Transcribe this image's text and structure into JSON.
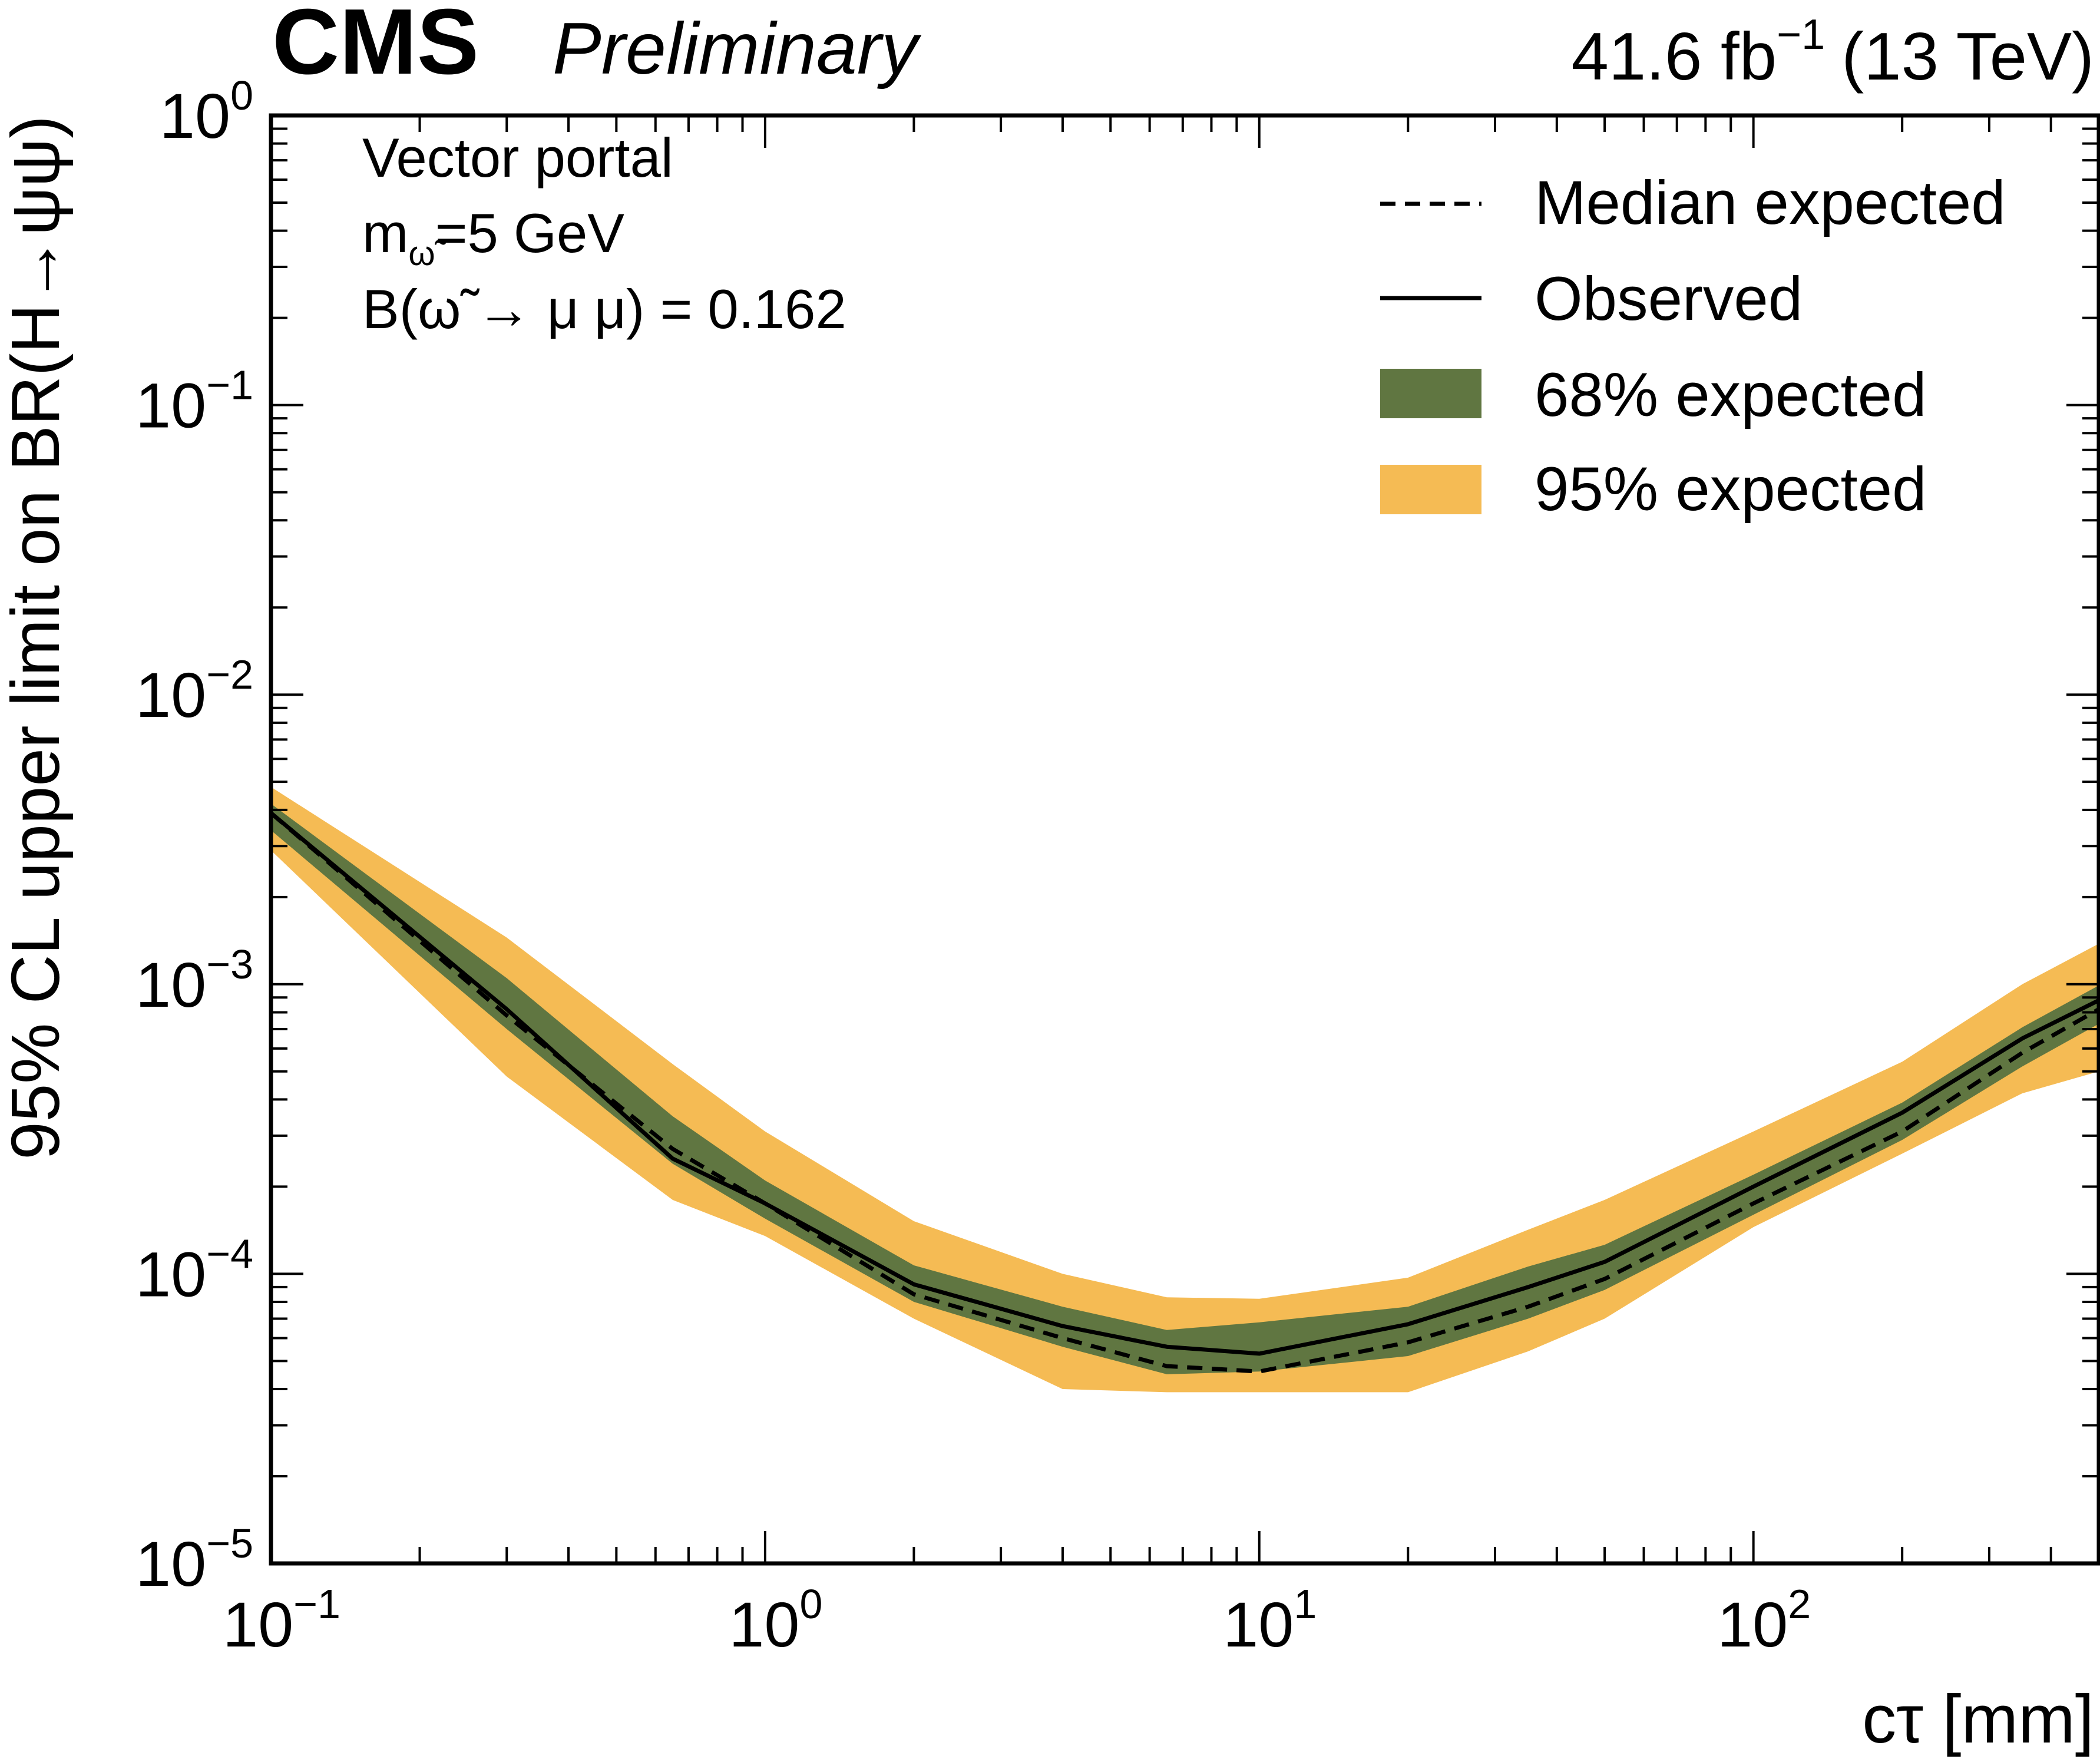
{
  "header": {
    "experiment": "CMS",
    "status": "Preliminary",
    "lumi_value": "41.6 fb",
    "lumi_exp": "−1",
    "energy": "(13 TeV)"
  },
  "annotation": {
    "line1": "Vector portal",
    "line2_main": "m",
    "line2_sub": "ω̃",
    "line2_rest": "=5 GeV",
    "line3": "B(ω̃ → μ μ) = 0.162"
  },
  "legend": {
    "median": "Median expected",
    "observed": "Observed",
    "band68": "68% expected",
    "band95": "95% expected"
  },
  "colors": {
    "band68": "#607641",
    "band95": "#f5bb54",
    "line": "#000000"
  },
  "chart_data": {
    "type": "line",
    "title": "",
    "xlabel": "cτ [mm]",
    "ylabel": "95% CL upper limit on BR(H→ψψ)",
    "xscale": "log",
    "yscale": "log",
    "xlim": [
      0.1,
      500
    ],
    "ylim": [
      1e-05,
      1
    ],
    "xticks": [
      {
        "base": "10",
        "exp": "−1",
        "value": 0.1
      },
      {
        "base": "10",
        "exp": "0",
        "value": 1
      },
      {
        "base": "10",
        "exp": "1",
        "value": 10
      },
      {
        "base": "10",
        "exp": "2",
        "value": 100
      }
    ],
    "yticks": [
      {
        "base": "10",
        "exp": "−5",
        "value": 1e-05
      },
      {
        "base": "10",
        "exp": "−4",
        "value": 0.0001
      },
      {
        "base": "10",
        "exp": "−3",
        "value": 0.001
      },
      {
        "base": "10",
        "exp": "−2",
        "value": 0.01
      },
      {
        "base": "10",
        "exp": "−1",
        "value": 0.1
      },
      {
        "base": "10",
        "exp": "0",
        "value": 1
      }
    ],
    "x": [
      0.1,
      0.3,
      0.65,
      1.0,
      2.0,
      4.0,
      6.5,
      10.0,
      20.0,
      35.0,
      50.0,
      100.0,
      200.0,
      350.0,
      500.0
    ],
    "series": [
      {
        "name": "Median expected",
        "style": "dashed",
        "values": [
          0.0039,
          0.00078,
          0.00027,
          0.000175,
          8.5e-05,
          6e-05,
          4.8e-05,
          4.6e-05,
          5.8e-05,
          7.7e-05,
          9.6e-05,
          0.000175,
          0.00031,
          0.00058,
          0.00082
        ]
      },
      {
        "name": "Observed",
        "style": "solid",
        "values": [
          0.0039,
          0.00082,
          0.00025,
          0.000175,
          9.2e-05,
          6.6e-05,
          5.6e-05,
          5.3e-05,
          6.7e-05,
          9e-05,
          0.00011,
          0.0002,
          0.00036,
          0.00065,
          0.00088
        ]
      },
      {
        "name": "68% expected",
        "style": "band",
        "lower": [
          0.0034,
          0.0007,
          0.00024,
          0.000155,
          8e-05,
          5.6e-05,
          4.5e-05,
          4.6e-05,
          5.2e-05,
          7e-05,
          8.8e-05,
          0.00016,
          0.00029,
          0.00052,
          0.00073
        ],
        "upper": [
          0.0042,
          0.00105,
          0.00035,
          0.00021,
          0.000107,
          7.7e-05,
          6.4e-05,
          6.8e-05,
          7.7e-05,
          0.000106,
          0.000126,
          0.00022,
          0.00039,
          0.00071,
          0.00099
        ]
      },
      {
        "name": "95% expected",
        "style": "band",
        "lower": [
          0.0029,
          0.00048,
          0.00018,
          0.000135,
          7e-05,
          4e-05,
          3.9e-05,
          3.9e-05,
          3.9e-05,
          5.4e-05,
          7e-05,
          0.000145,
          0.00026,
          0.00042,
          0.0005
        ]
      },
      {
        "name": "95% expected upper",
        "style": "band_upper",
        "values": [
          0.0048,
          0.00145,
          0.00053,
          0.00031,
          0.000152,
          0.0001,
          8.3e-05,
          8.2e-05,
          9.7e-05,
          0.000142,
          0.00018,
          0.00031,
          0.00054,
          0.001,
          0.00138
        ]
      }
    ]
  }
}
